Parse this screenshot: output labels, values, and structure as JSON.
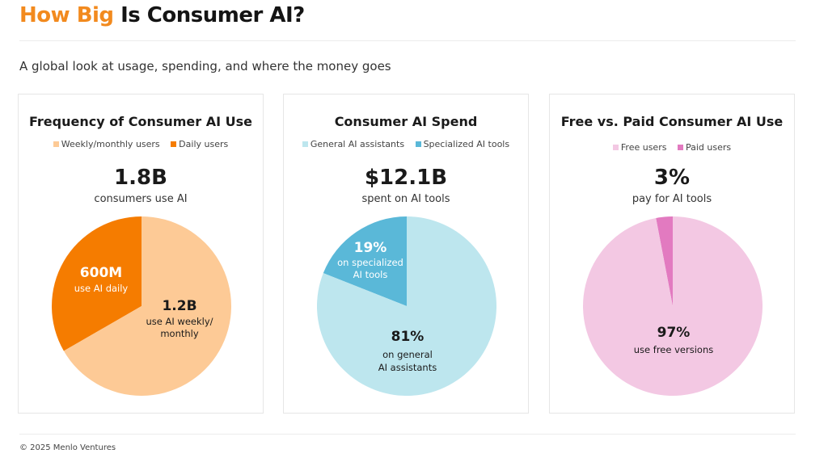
{
  "header": {
    "title_accent": "How Big",
    "title_rest": "Is Consumer AI?",
    "subtitle": "A global look at usage, spending, and where the money goes"
  },
  "footer": {
    "copyright": "© 2025 Menlo Ventures"
  },
  "cards": [
    {
      "title": "Frequency of Consumer AI Use",
      "legend": [
        {
          "label": "Weekly/monthly users",
          "color": "#fdca96"
        },
        {
          "label": "Daily users",
          "color": "#f57c00"
        }
      ],
      "headline": "1.8B",
      "caption": "consumers use AI",
      "slices": [
        {
          "value_label": "600M",
          "text_label": "use AI daily"
        },
        {
          "value_label": "1.2B",
          "text_label": "use AI weekly/ monthly"
        }
      ]
    },
    {
      "title": "Consumer AI Spend",
      "legend": [
        {
          "label": "General AI assistants",
          "color": "#bde6ee"
        },
        {
          "label": "Specialized AI tools",
          "color": "#5ab8d8"
        }
      ],
      "headline": "$12.1B",
      "caption": "spent on AI tools",
      "slices": [
        {
          "value_label": "19%",
          "text_label": "on specialized AI tools"
        },
        {
          "value_label": "81%",
          "text_label": "on general AI assistants"
        }
      ]
    },
    {
      "title": "Free vs. Paid Consumer AI Use",
      "legend": [
        {
          "label": "Free users",
          "color": "#f3c8e3"
        },
        {
          "label": "Paid users",
          "color": "#e27ac0"
        }
      ],
      "headline": "3%",
      "caption": "pay for AI tools",
      "slices": [
        {
          "value_label": "97%",
          "text_label": "use free versions"
        }
      ]
    }
  ],
  "chart_data": [
    {
      "type": "pie",
      "title": "Frequency of Consumer AI Use",
      "categories": [
        "Daily users",
        "Weekly/monthly users"
      ],
      "values": [
        600000000,
        1200000000
      ],
      "colors": [
        "#f57c00",
        "#fdca96"
      ],
      "total": "1.8B"
    },
    {
      "type": "pie",
      "title": "Consumer AI Spend",
      "categories": [
        "Specialized AI tools",
        "General AI assistants"
      ],
      "values": [
        19,
        81
      ],
      "colors": [
        "#5ab8d8",
        "#bde6ee"
      ],
      "total": "$12.1B"
    },
    {
      "type": "pie",
      "title": "Free vs. Paid Consumer AI Use",
      "categories": [
        "Paid users",
        "Free users"
      ],
      "values": [
        3,
        97
      ],
      "colors": [
        "#e27ac0",
        "#f3c8e3"
      ]
    }
  ]
}
